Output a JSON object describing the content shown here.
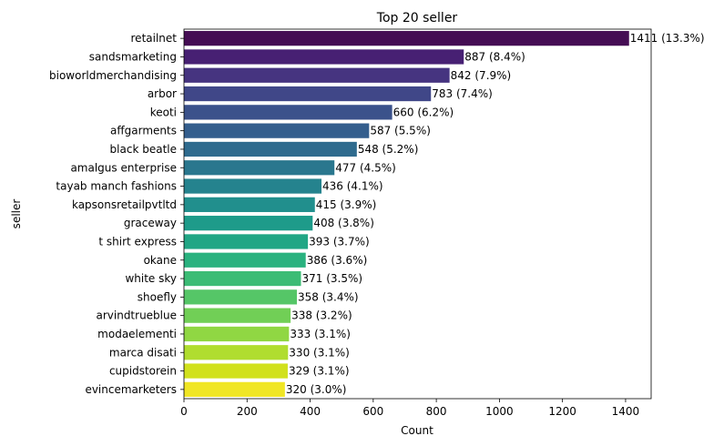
{
  "chart_data": {
    "type": "bar",
    "orientation": "horizontal",
    "title": "Top 20 seller",
    "xlabel": "Count",
    "ylabel": "seller",
    "xlim": [
      0,
      1481
    ],
    "xticks": [
      0,
      200,
      400,
      600,
      800,
      1000,
      1200,
      1400
    ],
    "grid": false,
    "palette": "viridis",
    "categories": [
      "retailnet",
      "sandsmarketing",
      "bioworldmerchandising",
      "arbor",
      "keoti",
      "affgarments",
      "black beatle",
      "amalgus enterprise",
      "tayab manch fashions",
      "kapsonsretailpvtltd",
      "graceway",
      "t shirt express",
      "okane",
      "white sky",
      "shoefly",
      "arvindtrueblue",
      "modaelementi",
      "marca disati",
      "cupidstorein",
      "evincemarketers"
    ],
    "values": [
      1411,
      887,
      842,
      783,
      660,
      587,
      548,
      477,
      436,
      415,
      408,
      393,
      386,
      371,
      358,
      338,
      333,
      330,
      329,
      320
    ],
    "data_labels": [
      "1411 (13.3%)",
      "887 (8.4%)",
      "842 (7.9%)",
      "783 (7.4%)",
      "660 (6.2%)",
      "587 (5.5%)",
      "548 (5.2%)",
      "477 (4.5%)",
      "436 (4.1%)",
      "415 (3.9%)",
      "408 (3.8%)",
      "393 (3.7%)",
      "386 (3.6%)",
      "371 (3.5%)",
      "358 (3.4%)",
      "338 (3.2%)",
      "333 (3.1%)",
      "330 (3.1%)",
      "329 (3.1%)",
      "320 (3.0%)"
    ],
    "colors": [
      "#450d54",
      "#472073",
      "#463480",
      "#404788",
      "#3b528b",
      "#345e8d",
      "#2f6b8e",
      "#2a778e",
      "#25838e",
      "#218f8d",
      "#1e9b8a",
      "#21a685",
      "#2ab27f",
      "#3cbc75",
      "#55c667",
      "#71cf56",
      "#90d743",
      "#b0dd2f",
      "#d1e11c",
      "#f0e625"
    ]
  }
}
